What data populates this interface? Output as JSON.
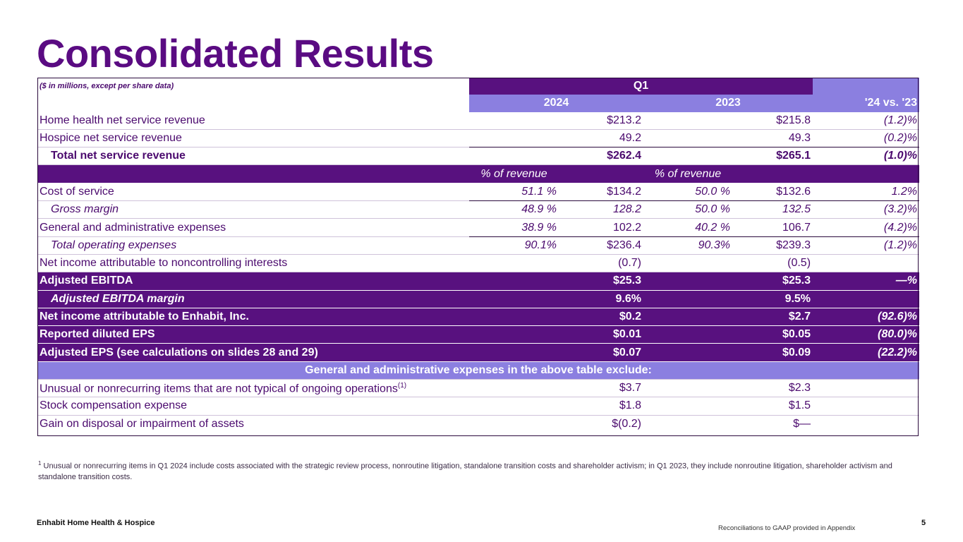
{
  "title": "Consolidated Results",
  "table": {
    "units_label": "($ in millions, except per share data)",
    "period": "Q1",
    "col_2024": "2024",
    "col_2023": "2023",
    "col_change": "'24 vs. '23",
    "pct_label_2024": "% of revenue",
    "pct_label_2023": "% of revenue",
    "r_home": {
      "label": "Home health net service revenue",
      "v24": "$213.2",
      "v23": "$215.8",
      "chg": "(1.2)%"
    },
    "r_hospice": {
      "label": "Hospice net service revenue",
      "v24": "49.2",
      "v23": "49.3",
      "chg": "(0.2)%"
    },
    "r_total": {
      "label": "Total net service revenue",
      "v24": "$262.4",
      "v23": "$265.1",
      "chg": "(1.0)%"
    },
    "r_cost": {
      "label": "Cost of service",
      "p24": "51.1 %",
      "v24": "$134.2",
      "p23": "50.0 %",
      "v23": "$132.6",
      "chg": "1.2%"
    },
    "r_gross": {
      "label": "Gross margin",
      "p24": "48.9 %",
      "v24": "128.2",
      "p23": "50.0 %",
      "v23": "132.5",
      "chg": "(3.2)%"
    },
    "r_ga": {
      "label": "General and administrative expenses",
      "p24": "38.9 %",
      "v24": "102.2",
      "p23": "40.2 %",
      "v23": "106.7",
      "chg": "(4.2)%"
    },
    "r_opex": {
      "label": "Total operating expenses",
      "p24": "90.1%",
      "v24": "$236.4",
      "p23": "90.3%",
      "v23": "$239.3",
      "chg": "(1.2)%"
    },
    "r_nci": {
      "label": "Net income attributable to noncontrolling interests",
      "v24": "(0.7)",
      "v23": "(0.5)"
    },
    "r_ebitda": {
      "label": "Adjusted EBITDA",
      "v24": "$25.3",
      "v23": "$25.3",
      "chg": "—%"
    },
    "r_margin": {
      "label": "Adjusted EBITDA margin",
      "v24": "9.6%",
      "v23": "9.5%"
    },
    "r_ni": {
      "label": "Net income attributable to Enhabit, Inc.",
      "v24": "$0.2",
      "v23": "$2.7",
      "chg": "(92.6)%"
    },
    "r_eps": {
      "label": "Reported diluted EPS",
      "v24": "$0.01",
      "v23": "$0.05",
      "chg": "(80.0)%"
    },
    "r_adjeps": {
      "label": "Adjusted EPS (see calculations on slides 28 and 29)",
      "v24": "$0.07",
      "v23": "$0.09",
      "chg": "(22.2)%"
    },
    "exclude_header": "General and administrative expenses in the above table exclude:",
    "r_unusual": {
      "label": "Unusual or nonrecurring items that are not typical of ongoing operations",
      "sup": "(1)",
      "v24": "$3.7",
      "v23": "$2.3"
    },
    "r_stock": {
      "label": "Stock compensation expense",
      "v24": "$1.8",
      "v23": "$1.5"
    },
    "r_gain": {
      "label": "Gain on disposal or impairment of assets",
      "v24": "$(0.2)",
      "v23": "$—"
    }
  },
  "footnote": {
    "marker": "1",
    "text": "Unusual or nonrecurring items in Q1 2024 include costs associated with the strategic review process, nonroutine litigation, standalone transition costs and shareholder activism; in Q1 2023, they include nonroutine litigation, shareholder activism and standalone transition costs."
  },
  "footer": {
    "company": "Enhabit Home Health & Hospice",
    "note": "Reconciliations to GAAP provided in Appendix",
    "page": "5"
  },
  "colors": {
    "brand_purple": "#5a0b82",
    "dark_row": "#58117f",
    "lavender": "#8b7fe0"
  }
}
